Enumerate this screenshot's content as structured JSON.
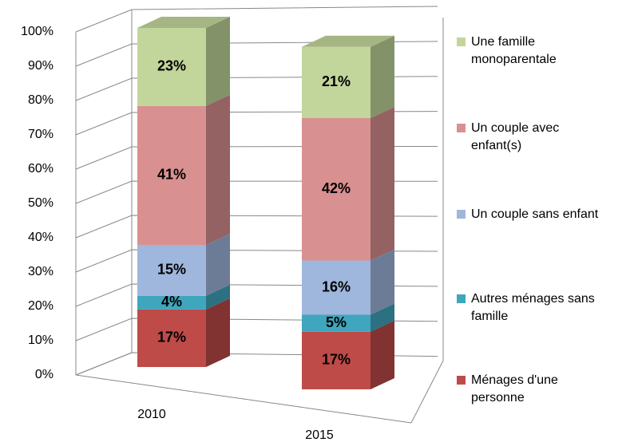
{
  "chart_data": {
    "type": "bar3d_stacked",
    "categories": [
      "2010",
      "2015"
    ],
    "series": [
      {
        "name": "Ménages d'une personne",
        "color": "#be4b48",
        "values": [
          17,
          17
        ],
        "value_labels": [
          "17%",
          "17%"
        ]
      },
      {
        "name": "Autres ménages sans famille",
        "color": "#3fa6bd",
        "values": [
          4,
          5
        ],
        "value_labels": [
          "4%",
          "5%"
        ]
      },
      {
        "name": "Un couple sans enfant",
        "color": "#9fb7dc",
        "values": [
          15,
          16
        ],
        "value_labels": [
          "15%",
          "16%"
        ]
      },
      {
        "name": "Un couple avec enfant(s)",
        "color": "#d99090",
        "values": [
          41,
          42
        ],
        "value_labels": [
          "41%",
          "42%"
        ]
      },
      {
        "name": "Une famille monoparentale",
        "color": "#c2d69b",
        "values": [
          23,
          21
        ],
        "value_labels": [
          "23%",
          "21%"
        ]
      }
    ],
    "ylim": [
      0,
      100
    ],
    "yticks": [
      {
        "value": 0,
        "label": "0%"
      },
      {
        "value": 10,
        "label": "10%"
      },
      {
        "value": 20,
        "label": "20%"
      },
      {
        "value": 30,
        "label": "30%"
      },
      {
        "value": 40,
        "label": "40%"
      },
      {
        "value": 50,
        "label": "50%"
      },
      {
        "value": 60,
        "label": "60%"
      },
      {
        "value": 70,
        "label": "70%"
      },
      {
        "value": 80,
        "label": "80%"
      },
      {
        "value": 90,
        "label": "90%"
      },
      {
        "value": 100,
        "label": "100%"
      }
    ],
    "grid": true,
    "legend": "right"
  }
}
